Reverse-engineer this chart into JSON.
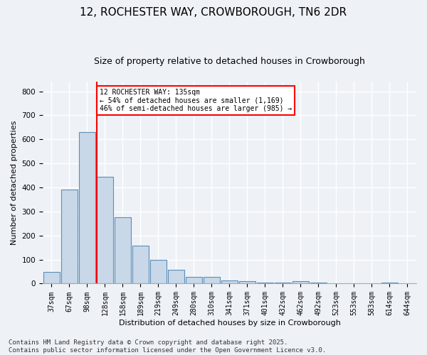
{
  "title": "12, ROCHESTER WAY, CROWBOROUGH, TN6 2DR",
  "subtitle": "Size of property relative to detached houses in Crowborough",
  "xlabel": "Distribution of detached houses by size in Crowborough",
  "ylabel": "Number of detached properties",
  "categories": [
    "37sqm",
    "67sqm",
    "98sqm",
    "128sqm",
    "158sqm",
    "189sqm",
    "219sqm",
    "249sqm",
    "280sqm",
    "310sqm",
    "341sqm",
    "371sqm",
    "401sqm",
    "432sqm",
    "462sqm",
    "492sqm",
    "523sqm",
    "553sqm",
    "583sqm",
    "614sqm",
    "644sqm"
  ],
  "values": [
    48,
    390,
    630,
    445,
    275,
    158,
    100,
    57,
    28,
    28,
    14,
    10,
    5,
    5,
    10,
    5,
    0,
    0,
    0,
    5,
    0
  ],
  "bar_color": "#c8d8e8",
  "bar_edge_color": "#5b8db8",
  "red_line_index": 3,
  "annotation_text": "12 ROCHESTER WAY: 135sqm\n← 54% of detached houses are smaller (1,169)\n46% of semi-detached houses are larger (985) →",
  "ylim": [
    0,
    840
  ],
  "yticks": [
    0,
    100,
    200,
    300,
    400,
    500,
    600,
    700,
    800
  ],
  "footer_text": "Contains HM Land Registry data © Crown copyright and database right 2025.\nContains public sector information licensed under the Open Government Licence v3.0.",
  "background_color": "#eef2f7",
  "grid_color": "#ffffff",
  "title_fontsize": 11,
  "subtitle_fontsize": 9,
  "tick_fontsize": 7,
  "label_fontsize": 8,
  "footer_fontsize": 6.5
}
